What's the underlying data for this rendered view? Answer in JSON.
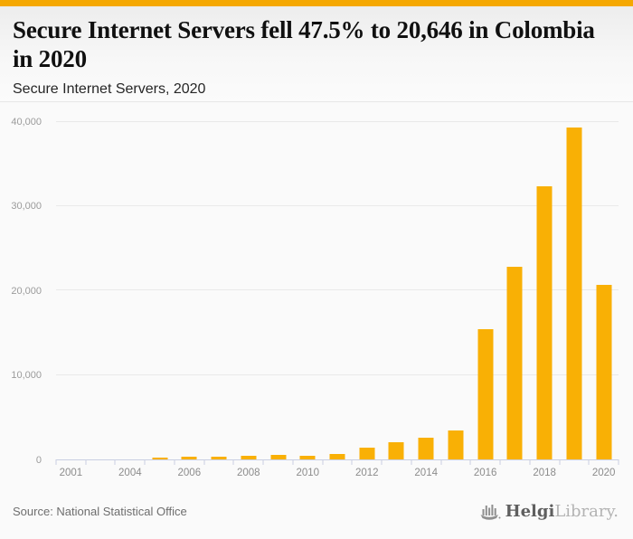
{
  "page": {
    "accent_color": "#F5A802",
    "background": "#fafafa"
  },
  "header": {
    "title": "Secure Internet Servers fell 47.5% to 20,646 in Colombia in 2020",
    "subtitle": "Secure Internet Servers, 2020"
  },
  "chart_data": {
    "type": "bar",
    "title": "Secure Internet Servers, 2020",
    "categories": [
      "2001",
      "2002",
      "2004",
      "2005",
      "2006",
      "2007",
      "2008",
      "2009",
      "2010",
      "2011",
      "2012",
      "2013",
      "2014",
      "2015",
      "2016",
      "2017",
      "2018",
      "2019",
      "2020"
    ],
    "values": [
      0,
      0,
      0,
      180,
      300,
      300,
      430,
      570,
      400,
      650,
      1350,
      2000,
      2550,
      3400,
      15400,
      22800,
      32400,
      39325,
      20646
    ],
    "xlabel": "",
    "ylabel": "",
    "ylim": [
      0,
      41700
    ],
    "yticks": [
      {
        "value": 0,
        "label": "0"
      },
      {
        "value": 10000,
        "label": "10,000"
      },
      {
        "value": 20000,
        "label": "20,000"
      },
      {
        "value": 30000,
        "label": "30,000"
      },
      {
        "value": 40000,
        "label": "40,000"
      }
    ],
    "xtick_labels_visible": [
      "2001",
      "2004",
      "2006",
      "2008",
      "2010",
      "2012",
      "2014",
      "2016",
      "2018",
      "2020"
    ],
    "bar_color": "#F9B005",
    "grid": "horizontal",
    "legend": "none"
  },
  "footer": {
    "source": "Source: National Statistical Office",
    "logo": {
      "icon": "helgi-bars-ship-icon",
      "brand_bold": "Helgi",
      "brand_light": "Library."
    }
  }
}
